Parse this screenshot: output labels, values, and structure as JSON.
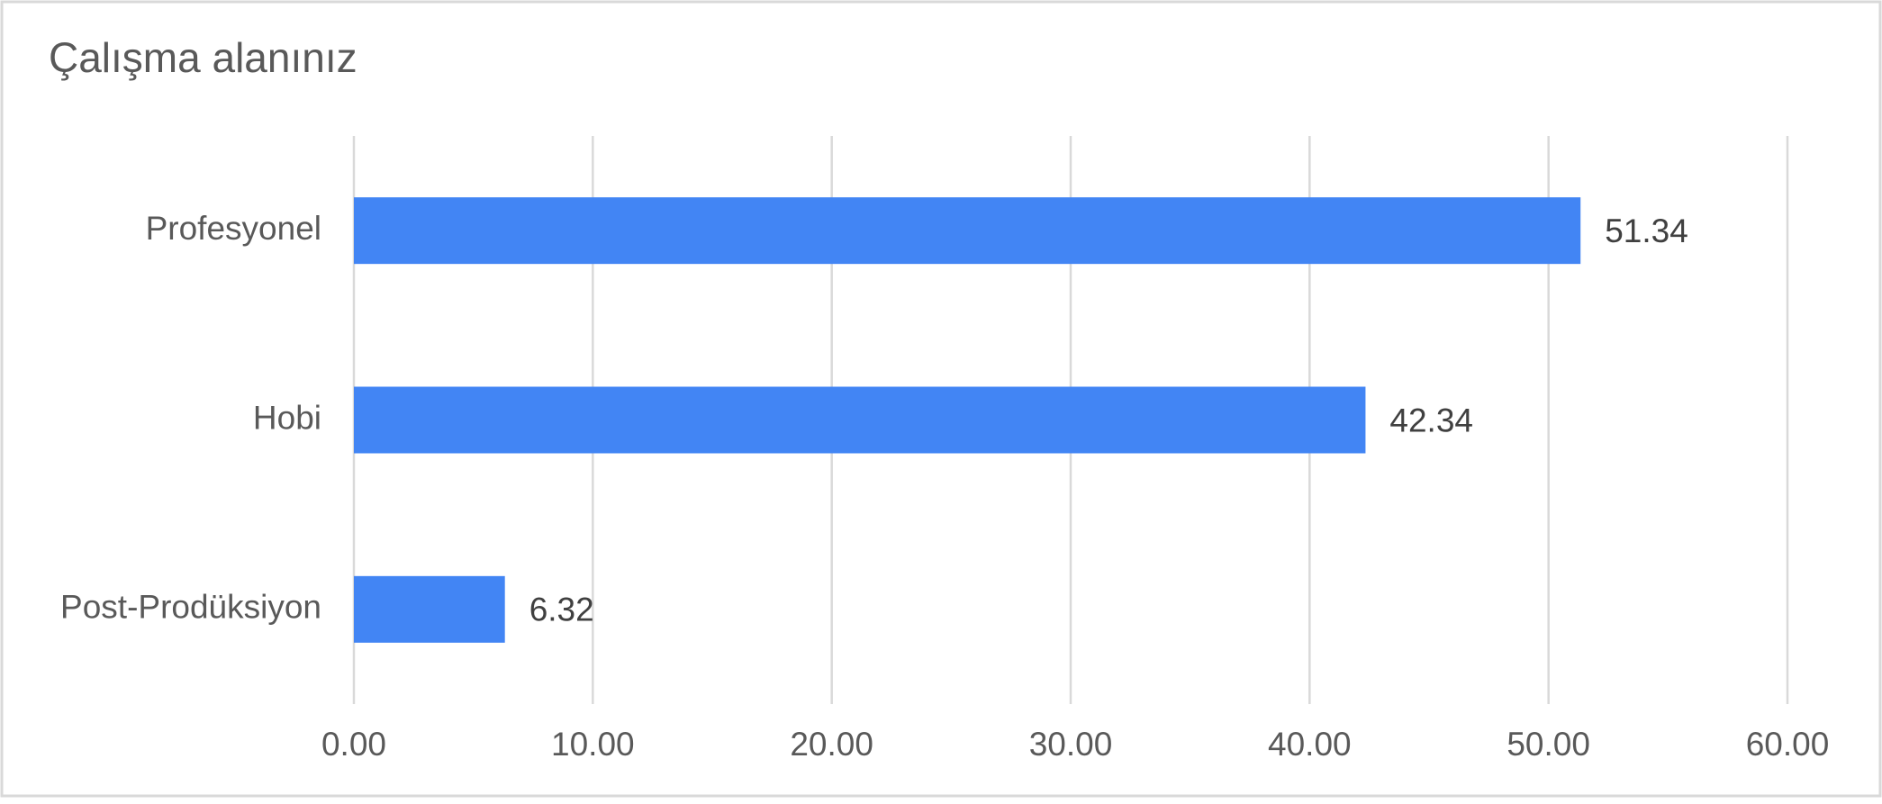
{
  "chart_data": {
    "type": "hbar",
    "title": "Çalışma alanınız",
    "categories": [
      "Profesyonel",
      "Hobi",
      "Post-Prodüksiyon"
    ],
    "values": [
      51.34,
      42.34,
      6.32
    ],
    "color": "#4285f4",
    "xlim": [
      0,
      60
    ],
    "xticks": [
      {
        "value": 0,
        "label": "0.00"
      },
      {
        "value": 10,
        "label": "10.00"
      },
      {
        "value": 20,
        "label": "20.00"
      },
      {
        "value": 30,
        "label": "30.00"
      },
      {
        "value": 40,
        "label": "40.00"
      },
      {
        "value": 50,
        "label": "50.00"
      },
      {
        "value": 60,
        "label": "60.00"
      }
    ],
    "grid": true
  }
}
